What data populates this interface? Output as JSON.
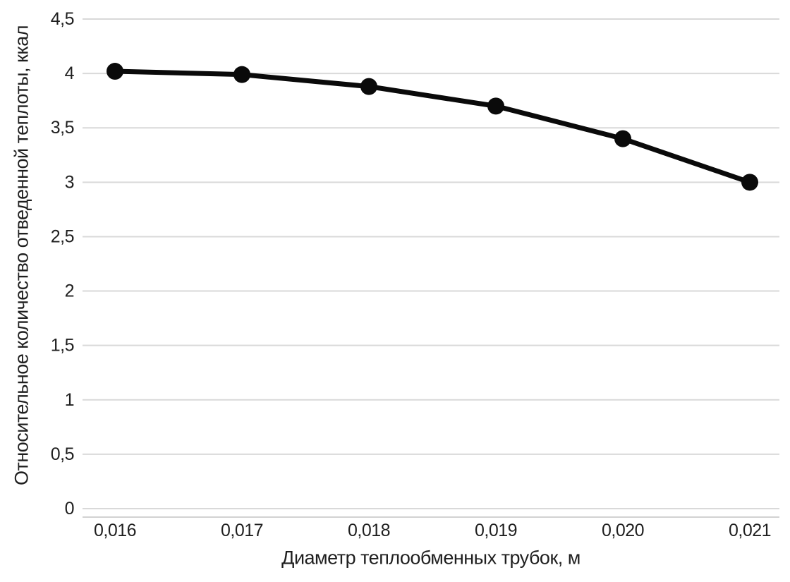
{
  "chart_data": {
    "type": "line",
    "title": "",
    "categories": [
      "0,016",
      "0,017",
      "0,018",
      "0,019",
      "0,020",
      "0,021"
    ],
    "x_values": [
      0.016,
      0.017,
      0.018,
      0.019,
      0.02,
      0.021
    ],
    "values": [
      4.02,
      3.99,
      3.88,
      3.7,
      3.4,
      3.0
    ],
    "xlabel": "Диаметр теплообменных трубок, м",
    "ylabel": "Относительное количество отведенной теплоты, ккал",
    "y_tick_labels": [
      "0",
      "0,5",
      "1",
      "1,5",
      "2",
      "2,5",
      "3",
      "3,5",
      "4",
      "4,5"
    ],
    "y_tick_values": [
      0,
      0.5,
      1,
      1.5,
      2,
      2.5,
      3,
      3.5,
      4,
      4.5
    ],
    "ylim": [
      0,
      4.5
    ],
    "grid": "horizontal",
    "legend": "none",
    "marker_shape": "circle",
    "colors": {
      "line": "#0a0a0a",
      "marker": "#0a0a0a",
      "gridline": "#d9d9d9",
      "axis_line": "#c3c3c3",
      "text": "#1f1f1f"
    }
  }
}
